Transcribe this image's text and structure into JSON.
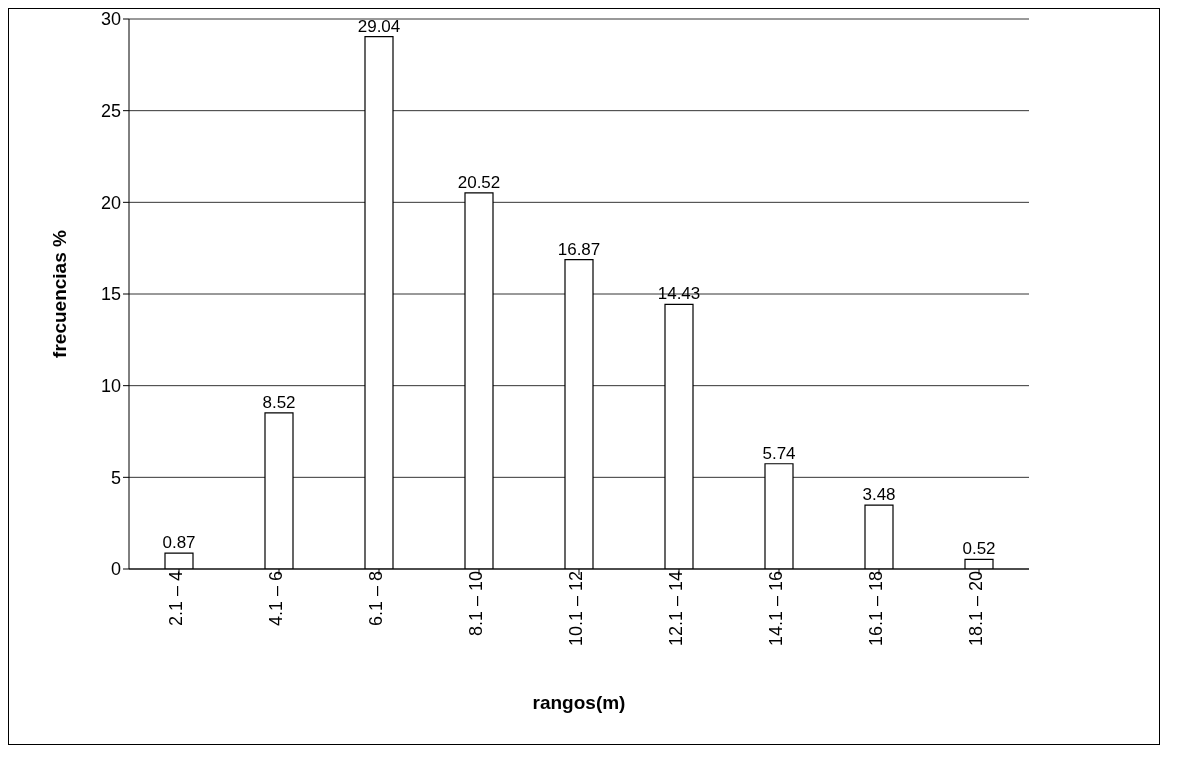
{
  "chart_data": {
    "type": "bar",
    "xlabel": "rangos(m)",
    "ylabel": "frecuencias %",
    "categories": [
      "2.1 – 4",
      "4.1 – 6",
      "6.1 – 8",
      "8.1 – 10",
      "10.1 – 12",
      "12.1 – 14",
      "14.1 – 16",
      "16.1 – 18",
      "18.1 – 20"
    ],
    "values": [
      0.87,
      8.52,
      29.04,
      20.52,
      16.87,
      14.43,
      5.74,
      3.48,
      0.52
    ],
    "color": "#ffffff",
    "ylim": [
      0,
      30
    ],
    "yticks": [
      0,
      5,
      10,
      15,
      20,
      25,
      30
    ],
    "grid": "y",
    "data_labels": true
  }
}
